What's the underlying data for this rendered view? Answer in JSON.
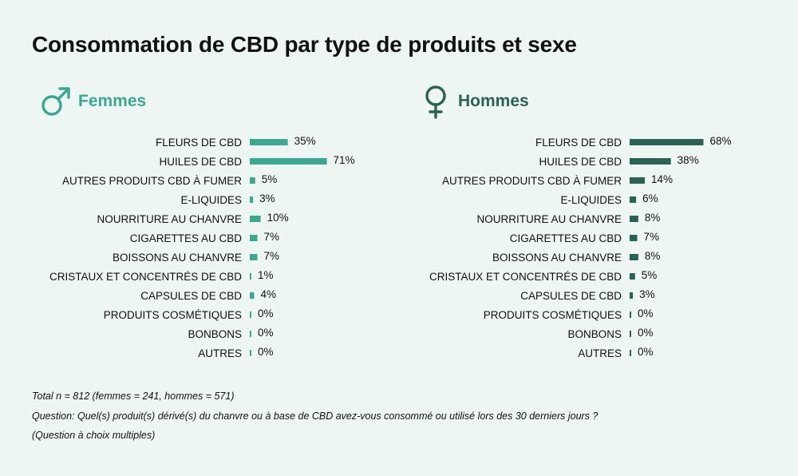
{
  "title": "Consommation de CBD par type de produits et sexe",
  "colors": {
    "women": "#3aa88f",
    "men": "#2a6354",
    "background": "#eef6f4"
  },
  "chart_data": [
    {
      "type": "bar",
      "orientation": "horizontal",
      "title": "Femmes",
      "legend_icon": "mars-symbol-icon",
      "color": "#3aa88f",
      "unit": "%",
      "categories": [
        "FLEURS DE CBD",
        "HUILES DE CBD",
        "AUTRES PRODUITS CBD À FUMER",
        "E-LIQUIDES",
        "NOURRITURE AU CHANVRE",
        "CIGARETTES AU CBD",
        "BOISSONS AU CHANVRE",
        "CRISTAUX ET CONCENTRÉS DE CBD",
        "CAPSULES DE CBD",
        "PRODUITS COSMÉTIQUES",
        "BONBONS",
        "AUTRES"
      ],
      "values": [
        35,
        71,
        5,
        3,
        10,
        7,
        7,
        1,
        4,
        0,
        0,
        0
      ],
      "labels": [
        "35%",
        "71%",
        "5%",
        "3%",
        "10%",
        "7%",
        "7%",
        "1%",
        "4%",
        "0%",
        "0%",
        "0%"
      ]
    },
    {
      "type": "bar",
      "orientation": "horizontal",
      "title": "Hommes",
      "legend_icon": "venus-symbol-icon",
      "color": "#2a6354",
      "unit": "%",
      "categories": [
        "FLEURS DE CBD",
        "HUILES DE CBD",
        "AUTRES PRODUITS CBD À FUMER",
        "E-LIQUIDES",
        "NOURRITURE AU CHANVRE",
        "CIGARETTES AU CBD",
        "BOISSONS AU CHANVRE",
        "CRISTAUX ET CONCENTRÉS DE CBD",
        "CAPSULES DE CBD",
        "PRODUITS COSMÉTIQUES",
        "BONBONS",
        "AUTRES"
      ],
      "values": [
        68,
        38,
        14,
        6,
        8,
        7,
        8,
        5,
        3,
        0,
        0,
        0
      ],
      "labels": [
        "68%",
        "38%",
        "14%",
        "6%",
        "8%",
        "7%",
        "8%",
        "5%",
        "3%",
        "0%",
        "0%",
        "0%"
      ]
    }
  ],
  "footnotes": {
    "total": "Total n = 812 (femmes = 241, hommes = 571)",
    "question": "Question: Quel(s) produit(s) dérivé(s) du chanvre ou à base de CBD avez-vous consommé ou utilisé lors des 30 derniers jours ?",
    "note": "(Question à choix multiples)"
  }
}
